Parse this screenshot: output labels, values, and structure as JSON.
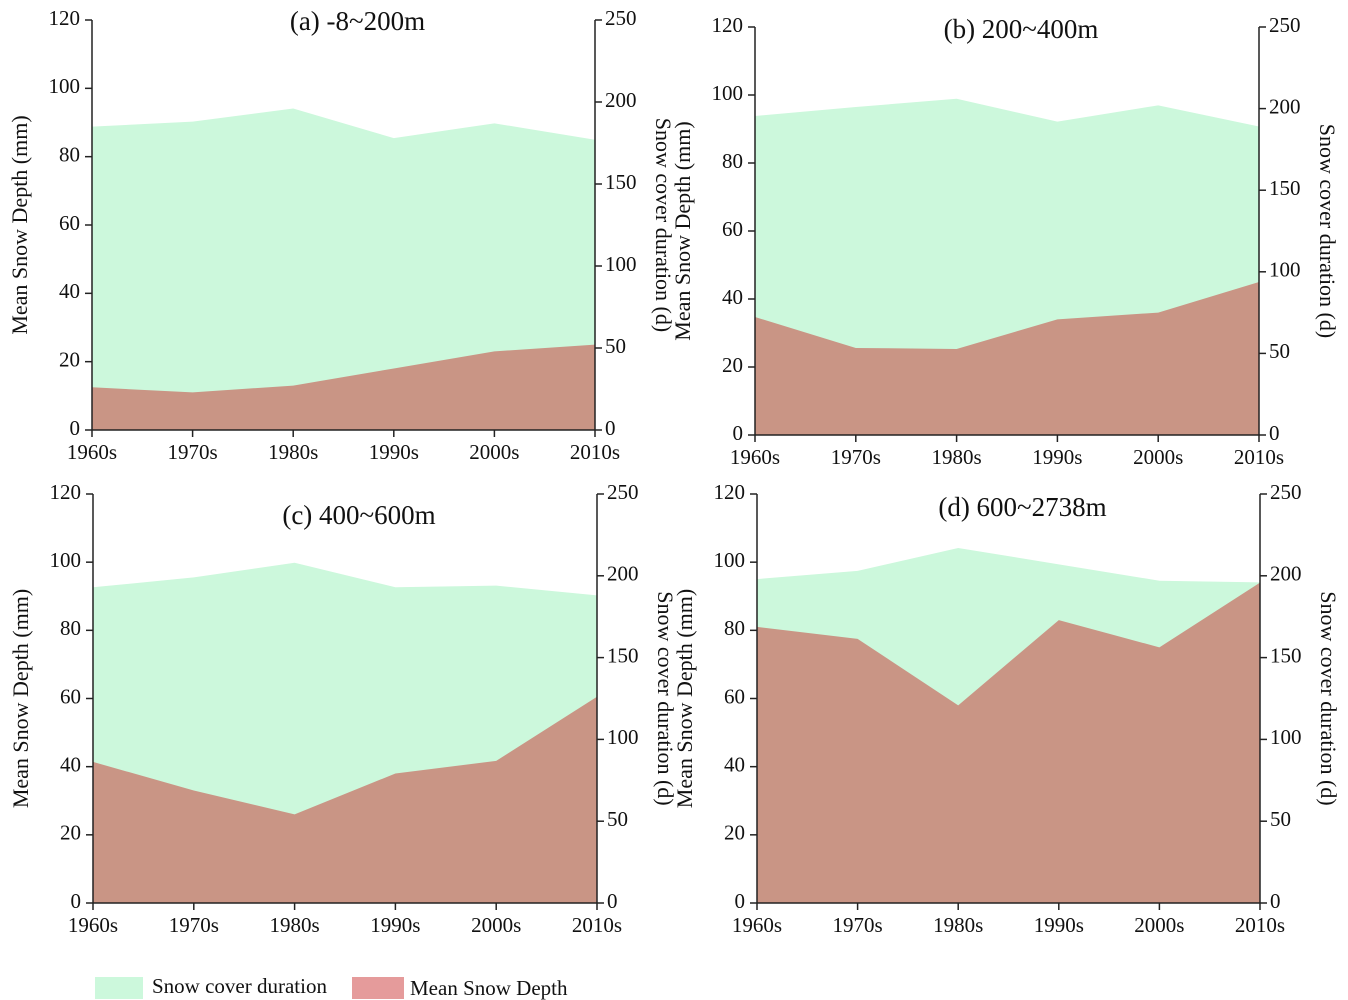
{
  "chart_data": [
    {
      "type": "area",
      "title": "(a) -8~200m",
      "ylabel": "Mean Snow Depth (mm)",
      "y2label": "Snow cover duration (d)",
      "categories": [
        "1960s",
        "1970s",
        "1980s",
        "1990s",
        "2000s",
        "2010s"
      ],
      "series": [
        {
          "name": "Snow cover duration",
          "color": "#ccf8dc",
          "axis": "y2",
          "values": [
            185,
            188,
            196,
            178,
            187,
            177
          ]
        },
        {
          "name": "Mean Snow Depth",
          "color": "#c99585",
          "values": [
            12.5,
            11,
            13,
            18,
            23,
            25
          ]
        }
      ],
      "ylim": [
        0,
        120
      ],
      "yticks": [
        0,
        20,
        40,
        60,
        80,
        100,
        120
      ],
      "y2lim": [
        0,
        250
      ],
      "y2ticks": [
        0,
        50,
        100,
        150,
        200,
        250
      ]
    },
    {
      "type": "area",
      "title": "(b) 200~400m",
      "ylabel": "Mean Snow Depth (mm)",
      "y2label": "Snow cover duration (d)",
      "categories": [
        "1960s",
        "1970s",
        "1980s",
        "1990s",
        "2000s",
        "2010s"
      ],
      "series": [
        {
          "color": "#ccf8dc",
          "axis": "y2",
          "values": [
            195.5,
            201,
            206,
            192,
            202,
            189
          ]
        },
        {
          "color": "#c99585",
          "values": [
            34.7,
            25.6,
            25.3,
            34,
            36,
            45
          ]
        }
      ],
      "ylim": [
        0,
        120
      ],
      "yticks": [
        0,
        20,
        40,
        60,
        80,
        100,
        120
      ],
      "y2lim": [
        0,
        250
      ],
      "y2ticks": [
        0,
        50,
        100,
        150,
        200,
        250
      ]
    },
    {
      "type": "area",
      "title": "(c) 400~600m",
      "ylabel": "Mean Snow Depth (mm)",
      "y2label": "Snow cover duration (d)",
      "categories": [
        "1960s",
        "1970s",
        "1980s",
        "1990s",
        "2000s",
        "2010s"
      ],
      "series": [
        {
          "color": "#ccf8dc",
          "axis": "y2",
          "values": [
            193,
            199,
            208,
            193,
            194,
            188
          ]
        },
        {
          "color": "#c99585",
          "values": [
            41.4,
            33,
            26,
            38,
            41.7,
            60.5
          ]
        }
      ],
      "ylim": [
        0,
        120
      ],
      "yticks": [
        0,
        20,
        40,
        60,
        80,
        100,
        120
      ],
      "y2lim": [
        0,
        250
      ],
      "y2ticks": [
        0,
        50,
        100,
        150,
        200,
        250
      ]
    },
    {
      "type": "area",
      "title": "(d) 600~2738m",
      "ylabel": "Mean Snow Depth (mm)",
      "y2label": "Snow cover duration (d)",
      "categories": [
        "1960s",
        "1970s",
        "1980s",
        "1990s",
        "2000s",
        "2010s"
      ],
      "series": [
        {
          "color": "#ccf8dc",
          "axis": "y2",
          "values": [
            198,
            203,
            217,
            207,
            197,
            196
          ]
        },
        {
          "color": "#c99585",
          "values": [
            81,
            77.5,
            58,
            83,
            75,
            94
          ]
        }
      ],
      "ylim": [
        0,
        120
      ],
      "yticks": [
        0,
        20,
        40,
        60,
        80,
        100,
        120
      ],
      "y2lim": [
        0,
        250
      ],
      "y2ticks": [
        0,
        50,
        100,
        150,
        200,
        250
      ]
    }
  ]
}
